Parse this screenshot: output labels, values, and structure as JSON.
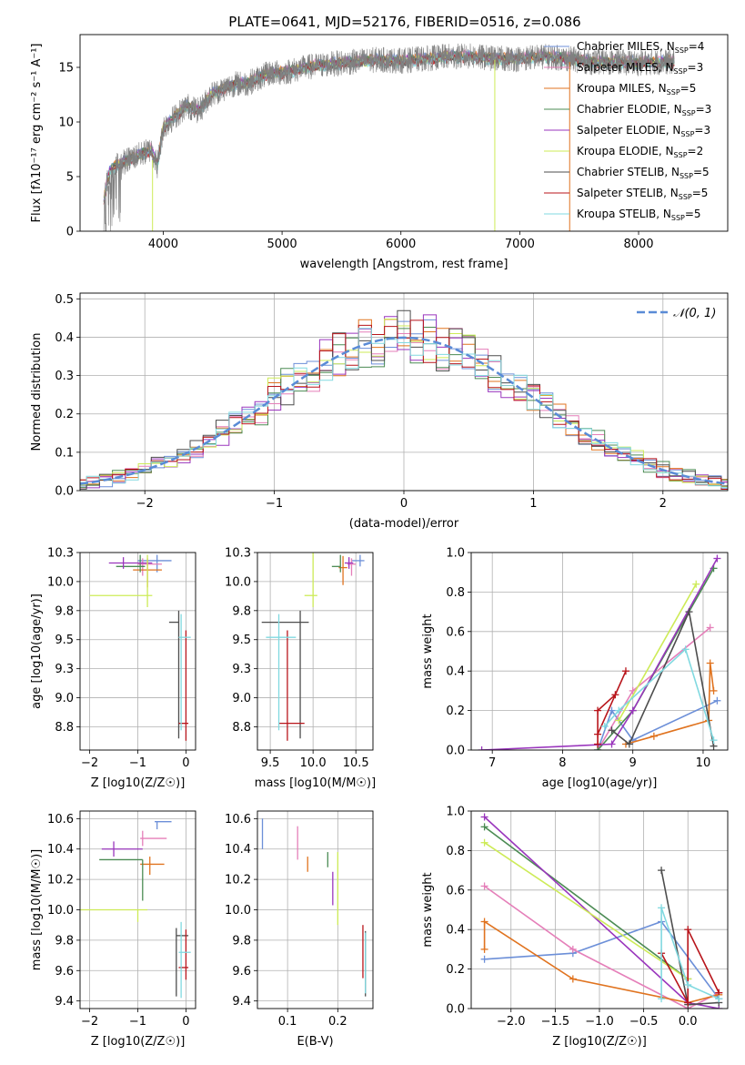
{
  "figure_title": "PLATE=0641, MJD=52176, FIBERID=0516, z=0.086",
  "chart_data": [
    {
      "id": "spectrum",
      "type": "line",
      "title": "PLATE=0641, MJD=52176, FIBERID=0516, z=0.086",
      "xlabel": "wavelength [Angstrom, rest frame]",
      "ylabel": "Flux [fλ10⁻¹⁷ erg cm⁻² s⁻¹ A⁻¹]",
      "xlim": [
        3300,
        8750
      ],
      "ylim": [
        0,
        18
      ],
      "xticks": [
        4000,
        5000,
        6000,
        7000,
        8000
      ],
      "yticks": [
        0,
        5,
        10,
        15
      ],
      "legend_position": "right",
      "data_curve": {
        "color": "#808080",
        "x": [
          3500,
          3550,
          3600,
          3700,
          3800,
          3900,
          3950,
          4000,
          4100,
          4200,
          4300,
          4400,
          4500,
          4600,
          4700,
          4800,
          4900,
          5000,
          5200,
          5400,
          5600,
          5800,
          6000,
          6200,
          6400,
          6600,
          6800,
          7000,
          7200,
          7400,
          7600,
          7800,
          8000,
          8200,
          8300
        ],
        "y": [
          3.0,
          5.5,
          6.0,
          6.5,
          7.0,
          7.5,
          6.0,
          9.5,
          10.5,
          11.5,
          11.0,
          12.5,
          13.0,
          13.5,
          13.5,
          14.0,
          14.5,
          14.5,
          15.0,
          15.3,
          15.5,
          15.7,
          15.6,
          15.8,
          16.0,
          16.0,
          15.8,
          15.8,
          16.0,
          15.8,
          15.5,
          15.5,
          15.4,
          15.5,
          15.5
        ]
      },
      "series": [
        {
          "name": "Chabrier MILES, N",
          "sub": "SSP",
          "n": "=4",
          "color": "#6c8fd8"
        },
        {
          "name": "Salpeter MILES, N",
          "sub": "SSP",
          "n": "=3",
          "color": "#e57fb9"
        },
        {
          "name": "Kroupa MILES, N",
          "sub": "SSP",
          "n": "=5",
          "color": "#e0731f"
        },
        {
          "name": "Chabrier ELODIE, N",
          "sub": "SSP",
          "n": "=3",
          "color": "#4b8b53"
        },
        {
          "name": "Salpeter ELODIE, N",
          "sub": "SSP",
          "n": "=3",
          "color": "#9a36bd"
        },
        {
          "name": "Kroupa ELODIE, N",
          "sub": "SSP",
          "n": "=2",
          "color": "#cdeb57"
        },
        {
          "name": "Chabrier STELIB, N",
          "sub": "SSP",
          "n": "=5",
          "color": "#4d4d4d"
        },
        {
          "name": "Salpeter STELIB, N",
          "sub": "SSP",
          "n": "=5",
          "color": "#b8151b"
        },
        {
          "name": "Kroupa STELIB, N",
          "sub": "SSP",
          "n": "=5",
          "color": "#81d9e0"
        }
      ]
    },
    {
      "id": "residuals",
      "type": "histogram",
      "xlabel": "(data-model)/error",
      "ylabel": "Normed distribution",
      "xlim": [
        -2.5,
        2.5
      ],
      "ylim": [
        0,
        0.515
      ],
      "xticks": [
        -2,
        -1,
        0,
        1,
        2
      ],
      "yticks": [
        0.0,
        0.1,
        0.2,
        0.3,
        0.4,
        0.5
      ],
      "grid": true,
      "legend_position": "top-right",
      "legend_label": "𝒩(0, 1)",
      "reference": {
        "type": "gaussian",
        "mean": 0,
        "sigma": 1,
        "color": "#5a8bd6"
      },
      "bin_width": 0.1
    },
    {
      "id": "age_vs_Z",
      "type": "scatter",
      "xlabel": "Z [log10(Z/Z☉)]",
      "ylabel": "age  [log10(age/yr)]",
      "xlim": [
        -2.2,
        0.2
      ],
      "ylim": [
        8.55,
        10.25
      ],
      "xticks": [
        -2,
        -1,
        0
      ],
      "yticks": [
        8.75,
        9.0,
        9.25,
        9.5,
        9.75,
        10.0,
        10.25
      ],
      "grid": true,
      "points": [
        {
          "series": "Chabrier MILES",
          "x": -0.6,
          "xerr": [
            0.4,
            0.3
          ],
          "y": 10.18,
          "yerr": [
            0.1,
            0.05
          ]
        },
        {
          "series": "Salpeter MILES",
          "x": -0.9,
          "xerr": [
            0.1,
            0.4
          ],
          "y": 10.15,
          "yerr": [
            0.1,
            0.05
          ]
        },
        {
          "series": "Kroupa MILES",
          "x": -0.8,
          "xerr": [
            0.3,
            0.3
          ],
          "y": 10.1,
          "yerr": [
            0.15,
            0.1
          ]
        },
        {
          "series": "Chabrier ELODIE",
          "x": -0.95,
          "xerr": [
            0.5,
            0.1
          ],
          "y": 10.13,
          "yerr": [
            0.05,
            0.1
          ]
        },
        {
          "series": "Salpeter ELODIE",
          "x": -1.3,
          "xerr": [
            0.3,
            0.6
          ],
          "y": 10.16,
          "yerr": [
            0.05,
            0.05
          ]
        },
        {
          "series": "Kroupa ELODIE",
          "x": -0.8,
          "xerr": [
            1.2,
            0.1
          ],
          "y": 9.88,
          "yerr": [
            0.1,
            0.35
          ]
        },
        {
          "series": "Chabrier STELIB",
          "x": -0.15,
          "xerr": [
            0.2,
            0.0
          ],
          "y": 9.65,
          "yerr": [
            1.0,
            0.1
          ]
        },
        {
          "series": "Salpeter STELIB",
          "x": 0.0,
          "xerr": [
            0.15,
            0.05
          ],
          "y": 8.78,
          "yerr": [
            0.15,
            0.8
          ]
        },
        {
          "series": "Kroupa STELIB",
          "x": -0.1,
          "xerr": [
            0.05,
            0.2
          ],
          "y": 9.52,
          "yerr": [
            0.8,
            0.2
          ]
        }
      ]
    },
    {
      "id": "age_vs_mass",
      "type": "scatter",
      "xlabel": "mass [log10(M/M☉)]",
      "ylabel": "",
      "xlim": [
        9.35,
        10.7
      ],
      "ylim": [
        8.55,
        10.25
      ],
      "xticks": [
        9.5,
        10.0,
        10.5
      ],
      "yticks": [
        8.75,
        9.0,
        9.25,
        9.5,
        9.75,
        10.0,
        10.25
      ],
      "grid": true,
      "points": [
        {
          "series": "Chabrier MILES",
          "x": 10.55,
          "xerr": [
            0.1,
            0.05
          ],
          "y": 10.18,
          "yerr": [
            0.05,
            0.05
          ]
        },
        {
          "series": "Salpeter MILES",
          "x": 10.45,
          "xerr": [
            0.05,
            0.05
          ],
          "y": 10.15,
          "yerr": [
            0.1,
            0.05
          ]
        },
        {
          "series": "Kroupa MILES",
          "x": 10.35,
          "xerr": [
            0.05,
            0.05
          ],
          "y": 10.12,
          "yerr": [
            0.15,
            0.1
          ]
        },
        {
          "series": "Chabrier ELODIE",
          "x": 10.32,
          "xerr": [
            0.1,
            0.0
          ],
          "y": 10.13,
          "yerr": [
            0.05,
            0.1
          ]
        },
        {
          "series": "Salpeter ELODIE",
          "x": 10.42,
          "xerr": [
            0.05,
            0.05
          ],
          "y": 10.16,
          "yerr": [
            0.05,
            0.05
          ]
        },
        {
          "series": "Kroupa ELODIE",
          "x": 10.0,
          "xerr": [
            0.1,
            0.05
          ],
          "y": 9.88,
          "yerr": [
            0.1,
            0.4
          ]
        },
        {
          "series": "Chabrier STELIB",
          "x": 9.85,
          "xerr": [
            0.45,
            0.1
          ],
          "y": 9.65,
          "yerr": [
            1.0,
            0.1
          ]
        },
        {
          "series": "Salpeter STELIB",
          "x": 9.7,
          "xerr": [
            0.1,
            0.2
          ],
          "y": 8.78,
          "yerr": [
            0.15,
            0.8
          ]
        },
        {
          "series": "Kroupa STELIB",
          "x": 9.6,
          "xerr": [
            0.15,
            0.2
          ],
          "y": 9.52,
          "yerr": [
            0.8,
            0.2
          ]
        }
      ]
    },
    {
      "id": "mass_weight_vs_age",
      "type": "line",
      "xlabel": "age  [log10(age/yr)]",
      "ylabel": "mass weight",
      "xlim": [
        6.7,
        10.35
      ],
      "ylim": [
        0,
        1.0
      ],
      "xticks": [
        7,
        8,
        9,
        10
      ],
      "yticks": [
        0.0,
        0.2,
        0.4,
        0.6,
        0.8,
        1.0
      ],
      "grid": true,
      "series": [
        {
          "series": "Chabrier MILES",
          "x": [
            8.5,
            8.7,
            9.0,
            10.2
          ],
          "y": [
            0.0,
            0.2,
            0.05,
            0.25
          ]
        },
        {
          "series": "Salpeter MILES",
          "x": [
            8.5,
            9.0,
            10.1
          ],
          "y": [
            0.0,
            0.3,
            0.62
          ]
        },
        {
          "series": "Kroupa MILES",
          "x": [
            8.9,
            9.3,
            10.08,
            10.1,
            10.15
          ],
          "y": [
            0.03,
            0.07,
            0.15,
            0.44,
            0.3
          ]
        },
        {
          "series": "Chabrier ELODIE",
          "x": [
            8.5,
            9.0,
            10.15
          ],
          "y": [
            0.0,
            0.2,
            0.92
          ]
        },
        {
          "series": "Salpeter ELODIE",
          "x": [
            6.85,
            8.7,
            9.0,
            10.2
          ],
          "y": [
            0.0,
            0.03,
            0.2,
            0.97
          ]
        },
        {
          "series": "Kroupa ELODIE",
          "x": [
            8.8,
            9.9
          ],
          "y": [
            0.15,
            0.84
          ]
        },
        {
          "series": "Chabrier STELIB",
          "x": [
            8.7,
            8.95,
            9.8,
            10.15
          ],
          "y": [
            0.1,
            0.03,
            0.7,
            0.02
          ]
        },
        {
          "series": "Salpeter STELIB",
          "x": [
            8.5,
            8.5,
            8.75,
            8.9,
            8.5
          ],
          "y": [
            0.03,
            0.2,
            0.28,
            0.4,
            0.08
          ]
        },
        {
          "series": "Kroupa STELIB",
          "x": [
            8.6,
            8.8,
            9.75,
            10.15
          ],
          "y": [
            0.12,
            0.2,
            0.51,
            0.05
          ]
        }
      ]
    },
    {
      "id": "mass_vs_Z",
      "type": "scatter",
      "xlabel": "Z [log10(Z/Z☉)]",
      "ylabel": "mass [log10(M/M☉)]",
      "xlim": [
        -2.2,
        0.2
      ],
      "ylim": [
        9.35,
        10.65
      ],
      "xticks": [
        -2,
        -1,
        0
      ],
      "yticks": [
        9.4,
        9.6,
        9.8,
        10.0,
        10.2,
        10.4,
        10.6
      ],
      "grid": true,
      "points": [
        {
          "series": "Chabrier MILES",
          "x": -0.6,
          "xerr": [
            0.05,
            0.3
          ],
          "y": 10.58,
          "yerr": [
            0.05,
            0.0
          ]
        },
        {
          "series": "Salpeter MILES",
          "x": -0.9,
          "xerr": [
            0.05,
            0.5
          ],
          "y": 10.47,
          "yerr": [
            0.05,
            0.05
          ]
        },
        {
          "series": "Kroupa MILES",
          "x": -0.75,
          "xerr": [
            0.2,
            0.3
          ],
          "y": 10.3,
          "yerr": [
            0.07,
            0.05
          ]
        },
        {
          "series": "Chabrier ELODIE",
          "x": -0.9,
          "xerr": [
            0.9,
            0.0
          ],
          "y": 10.33,
          "yerr": [
            0.27,
            0.0
          ]
        },
        {
          "series": "Salpeter ELODIE",
          "x": -1.5,
          "xerr": [
            0.25,
            0.6
          ],
          "y": 10.4,
          "yerr": [
            0.05,
            0.05
          ]
        },
        {
          "series": "Kroupa ELODIE",
          "x": -1.0,
          "xerr": [
            1.2,
            0.2
          ],
          "y": 10.0,
          "yerr": [
            0.08,
            0.0
          ]
        },
        {
          "series": "Chabrier STELIB",
          "x": -0.2,
          "xerr": [
            0.0,
            0.25
          ],
          "y": 9.83,
          "yerr": [
            0.4,
            0.05
          ]
        },
        {
          "series": "Salpeter STELIB",
          "x": 0.0,
          "xerr": [
            0.15,
            0.05
          ],
          "y": 9.62,
          "yerr": [
            0.08,
            0.25
          ]
        },
        {
          "series": "Kroupa STELIB",
          "x": -0.1,
          "xerr": [
            0.05,
            0.2
          ],
          "y": 9.72,
          "yerr": [
            0.3,
            0.2
          ]
        }
      ]
    },
    {
      "id": "mass_vs_ebv",
      "type": "scatter",
      "xlabel": "E(B-V)",
      "ylabel": "",
      "xlim": [
        0.04,
        0.27
      ],
      "ylim": [
        9.35,
        10.65
      ],
      "xticks": [
        0.1,
        0.2
      ],
      "yticks": [
        9.4,
        9.6,
        9.8,
        10.0,
        10.2,
        10.4,
        10.6
      ],
      "grid": true,
      "points": [
        {
          "series": "Chabrier MILES",
          "x": 0.05,
          "y": 10.5,
          "yerr": [
            0.1,
            0.1
          ]
        },
        {
          "series": "Salpeter MILES",
          "x": 0.12,
          "y": 10.45,
          "yerr": [
            0.12,
            0.1
          ]
        },
        {
          "series": "Kroupa MILES",
          "x": 0.14,
          "y": 10.3,
          "yerr": [
            0.05,
            0.05
          ]
        },
        {
          "series": "Chabrier ELODIE",
          "x": 0.18,
          "y": 10.33,
          "yerr": [
            0.05,
            0.05
          ]
        },
        {
          "series": "Salpeter ELODIE",
          "x": 0.19,
          "y": 10.15,
          "yerr": [
            0.12,
            0.1
          ]
        },
        {
          "series": "Kroupa ELODIE",
          "x": 0.2,
          "y": 10.0,
          "yerr": [
            0.1,
            0.38
          ]
        },
        {
          "series": "Chabrier STELIB",
          "x": 0.255,
          "y": 9.63,
          "yerr": [
            0.2,
            0.23
          ]
        },
        {
          "series": "Salpeter STELIB",
          "x": 0.25,
          "y": 9.65,
          "yerr": [
            0.1,
            0.25
          ]
        },
        {
          "series": "Kroupa STELIB",
          "x": 0.255,
          "y": 9.55,
          "yerr": [
            0.1,
            0.3
          ]
        }
      ]
    },
    {
      "id": "mass_weight_vs_Z",
      "type": "line",
      "xlabel": "Z [log10(Z/Z☉)]",
      "ylabel": "mass weight",
      "xlim": [
        -2.45,
        0.45
      ],
      "ylim": [
        0,
        1.0
      ],
      "xticks": [
        -2.0,
        -1.5,
        -1.0,
        -0.5,
        0.0
      ],
      "yticks": [
        0.0,
        0.2,
        0.4,
        0.6,
        0.8,
        1.0
      ],
      "grid": true,
      "series": [
        {
          "series": "Chabrier MILES",
          "x": [
            -2.3,
            -1.3,
            -0.3,
            0.35
          ],
          "y": [
            0.25,
            0.28,
            0.44,
            0.05
          ]
        },
        {
          "series": "Salpeter MILES",
          "x": [
            -2.3,
            -1.3,
            0.0,
            0.35
          ],
          "y": [
            0.62,
            0.3,
            0.0,
            0.08
          ]
        },
        {
          "series": "Kroupa MILES",
          "x": [
            -2.3,
            -2.3,
            -1.3,
            0.0,
            0.35
          ],
          "y": [
            0.3,
            0.44,
            0.15,
            0.03,
            0.07
          ]
        },
        {
          "series": "Chabrier ELODIE",
          "x": [
            -2.3,
            0.0
          ],
          "y": [
            0.92,
            0.15
          ]
        },
        {
          "series": "Salpeter ELODIE",
          "x": [
            -2.3,
            0.0,
            0.35
          ],
          "y": [
            0.97,
            0.03,
            0.0
          ]
        },
        {
          "series": "Kroupa ELODIE",
          "x": [
            -2.3,
            0.0
          ],
          "y": [
            0.84,
            0.15
          ]
        },
        {
          "series": "Chabrier STELIB",
          "x": [
            -0.3,
            0.0,
            0.35
          ],
          "y": [
            0.7,
            0.02,
            0.03
          ]
        },
        {
          "series": "Salpeter STELIB",
          "x": [
            -0.3,
            0.0,
            0.0,
            0.35
          ],
          "y": [
            0.28,
            0.03,
            0.4,
            0.08
          ]
        },
        {
          "series": "Kroupa STELIB",
          "x": [
            -0.3,
            -0.3,
            0.0,
            0.35
          ],
          "y": [
            0.05,
            0.51,
            0.12,
            0.05
          ]
        }
      ]
    }
  ]
}
